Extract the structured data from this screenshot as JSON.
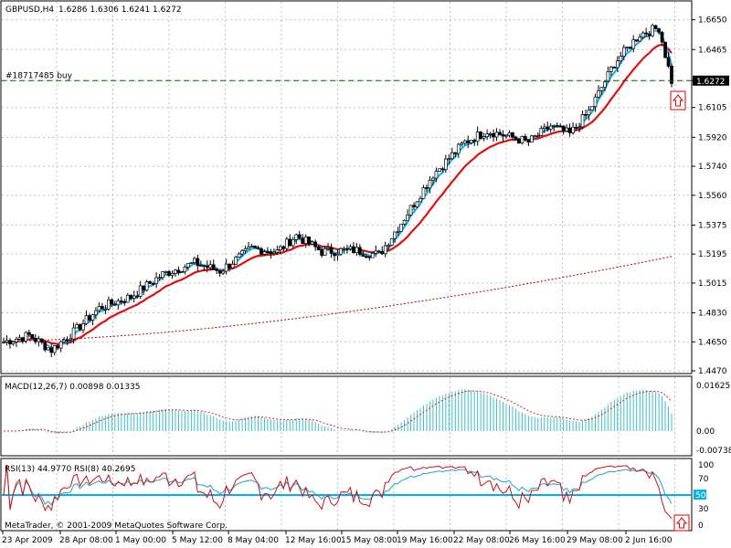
{
  "header": {
    "symbol": "GBPUSD,H4",
    "ohlc": "1.6286 1.6306 1.6241 1.6272",
    "order_label": "#18717485 buy",
    "current_price": "1.6272"
  },
  "macd": {
    "label": "MACD(12,26,7) 0.00898 0.01335",
    "ticks": [
      "0.01625",
      "0.00",
      "-0.00738"
    ]
  },
  "rsi": {
    "label": "RSI(13) 44.9770  RSI(8) 40.2695",
    "ticks": [
      "100",
      "70",
      "50",
      "30",
      "0"
    ]
  },
  "copyright": "MetaTrader, © 2001-2009 MetaQuotes Software Corp.",
  "colors": {
    "background": "#ffffff",
    "grid": "#c0c0c0",
    "ma_fast": "#00b4ff",
    "ma_slow": "#e01010",
    "ma_long": "#b00000",
    "macd_hist": "#3cc0c8",
    "macd_signal": "#e02020",
    "rsi13": "#20a0c8",
    "rsi8": "#d01010",
    "rsi_level": "#00b4e6",
    "order_line": "#006400",
    "price_box": "#000000",
    "arrow": "#e00000"
  },
  "chart_data": {
    "type": "candlestick",
    "title": "GBPUSD,H4",
    "y_ticks": [
      "1.6650",
      "1.6465",
      "1.6272",
      "1.6105",
      "1.5920",
      "1.5740",
      "1.5560",
      "1.5375",
      "1.5195",
      "1.5015",
      "1.4830",
      "1.4650",
      "1.4470"
    ],
    "ylim": [
      1.447,
      1.675
    ],
    "x_ticks": [
      "23 Apr 2009",
      "28 Apr 08:00",
      "1 May 00:00",
      "5 May 12:00",
      "8 May 04:00",
      "12 May 16:00",
      "15 May 08:00",
      "19 May 16:00",
      "22 May 08:00",
      "26 May 16:00",
      "29 May 08:00",
      "2 Jun 16:00"
    ],
    "trend_waypoints": [
      [
        0,
        1.465
      ],
      [
        8,
        1.469
      ],
      [
        15,
        1.46
      ],
      [
        22,
        1.471
      ],
      [
        30,
        1.486
      ],
      [
        40,
        1.493
      ],
      [
        50,
        1.507
      ],
      [
        60,
        1.514
      ],
      [
        68,
        1.509
      ],
      [
        78,
        1.523
      ],
      [
        86,
        1.521
      ],
      [
        92,
        1.531
      ],
      [
        100,
        1.521
      ],
      [
        110,
        1.522
      ],
      [
        118,
        1.519
      ],
      [
        125,
        1.539
      ],
      [
        135,
        1.569
      ],
      [
        145,
        1.589
      ],
      [
        152,
        1.596
      ],
      [
        158,
        1.593
      ],
      [
        165,
        1.589
      ],
      [
        172,
        1.599
      ],
      [
        178,
        1.594
      ],
      [
        184,
        1.608
      ],
      [
        192,
        1.638
      ],
      [
        200,
        1.656
      ],
      [
        206,
        1.66
      ],
      [
        210,
        1.627
      ]
    ],
    "order_price": 1.6272,
    "ma_long_end": 1.518
  }
}
